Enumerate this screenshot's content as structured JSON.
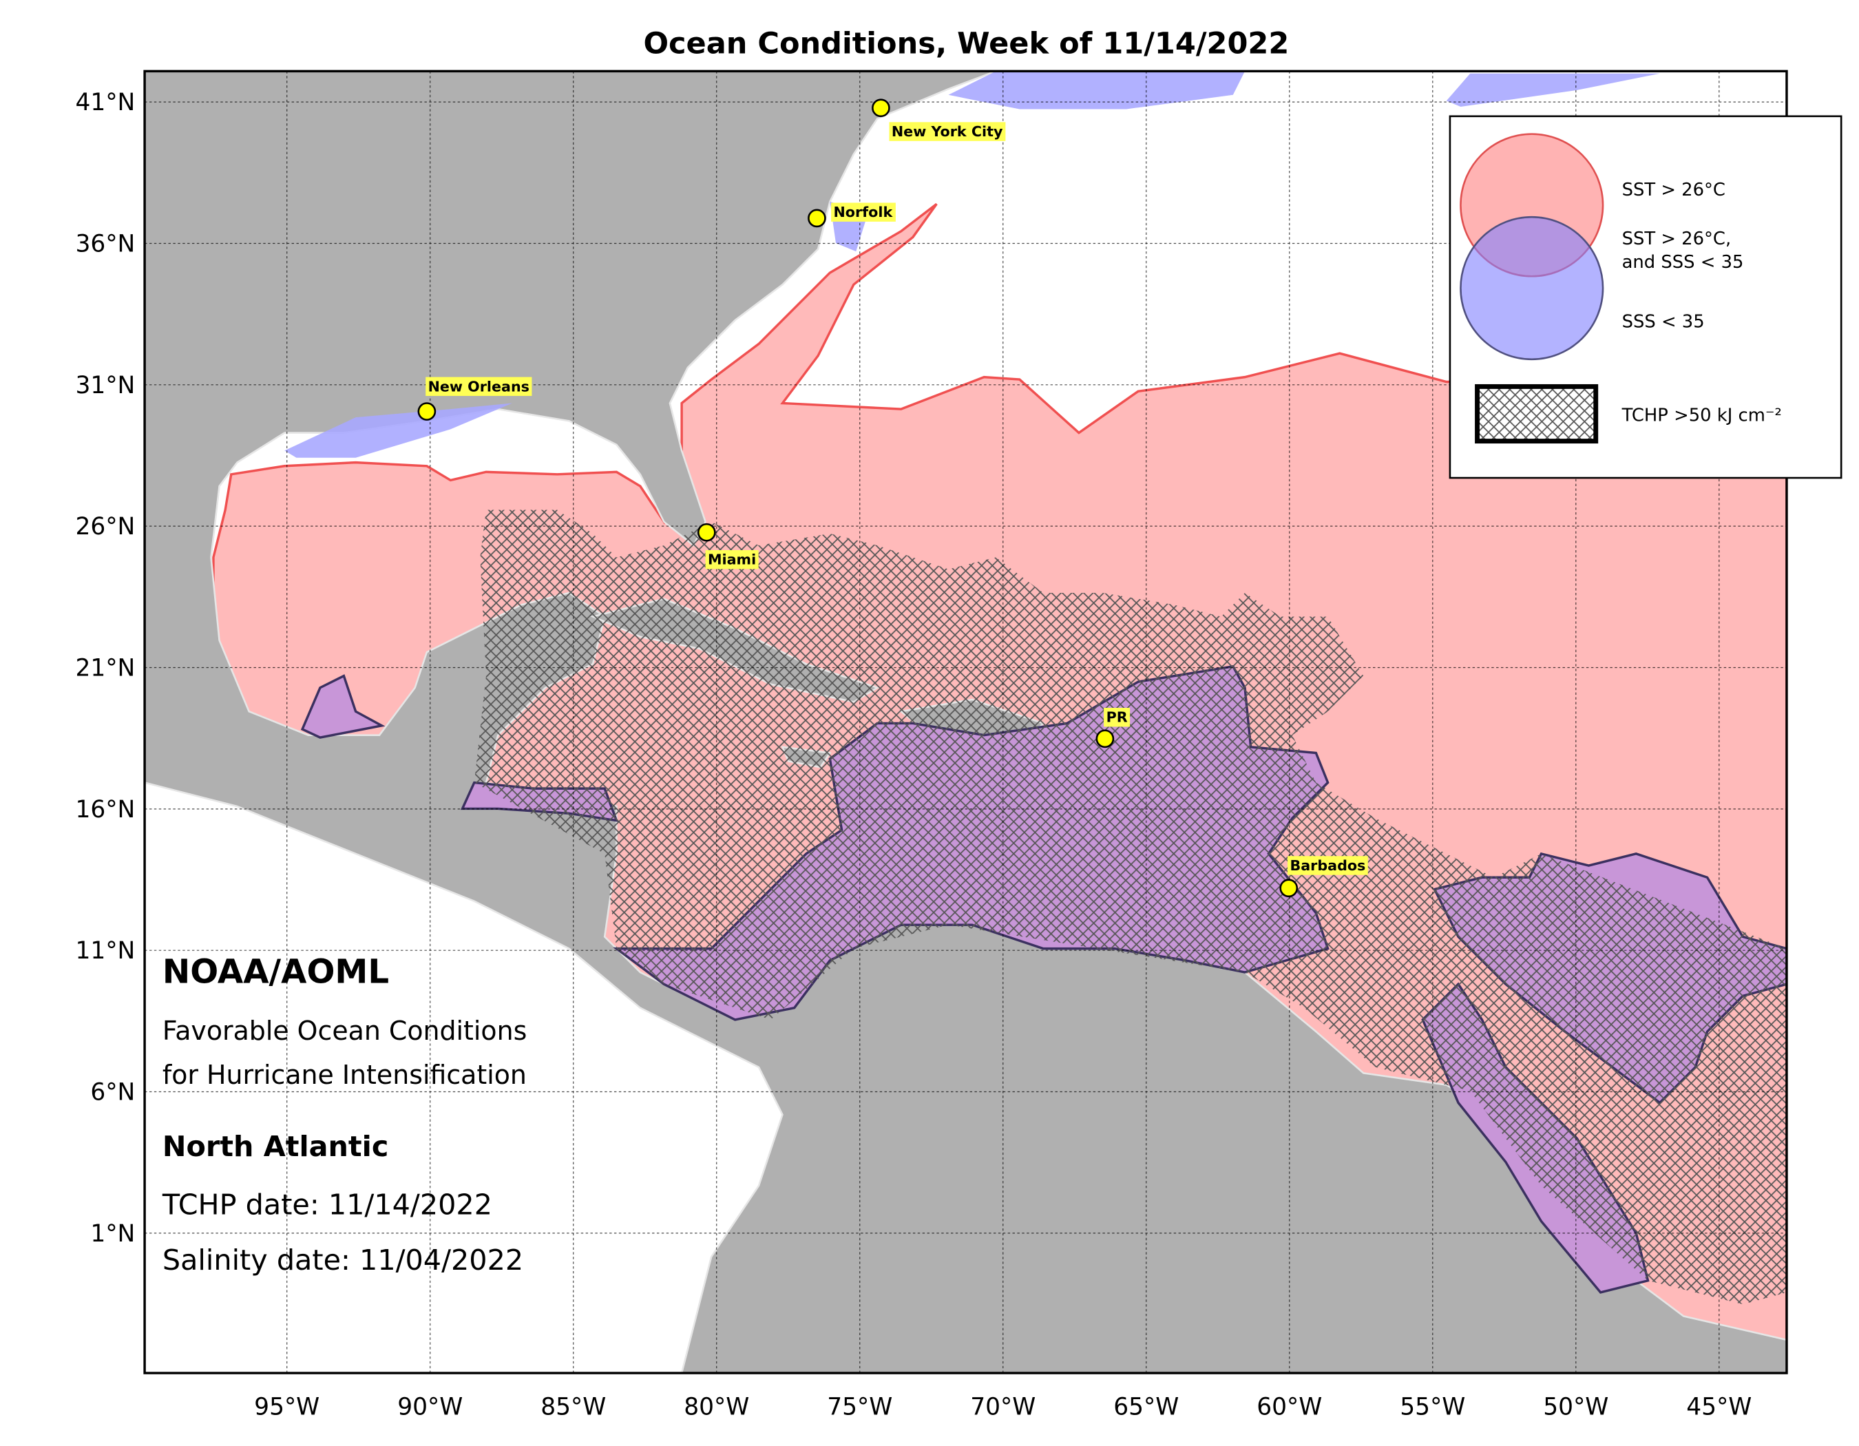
{
  "header": {
    "title": "Ocean Conditions, Week of 11/14/2022"
  },
  "map": {
    "lat_ticks": [
      {
        "value": 41,
        "label": "41°N"
      },
      {
        "value": 36,
        "label": "36°N"
      },
      {
        "value": 31,
        "label": "31°N"
      },
      {
        "value": 26,
        "label": "26°N"
      },
      {
        "value": 21,
        "label": "21°N"
      },
      {
        "value": 16,
        "label": "16°N"
      },
      {
        "value": 11,
        "label": "11°N"
      },
      {
        "value": 6,
        "label": "6°N"
      },
      {
        "value": 1,
        "label": "1°N"
      }
    ],
    "lon_ticks": [
      {
        "value": -95,
        "label": "95°W"
      },
      {
        "value": -90,
        "label": "90°W"
      },
      {
        "value": -85,
        "label": "85°W"
      },
      {
        "value": -80,
        "label": "80°W"
      },
      {
        "value": -75,
        "label": "75°W"
      },
      {
        "value": -70,
        "label": "70°W"
      },
      {
        "value": -65,
        "label": "65°W"
      },
      {
        "value": -60,
        "label": "60°W"
      },
      {
        "value": -55,
        "label": "55°W"
      },
      {
        "value": -50,
        "label": "50°W"
      },
      {
        "value": -45,
        "label": "45°W"
      }
    ],
    "cities": [
      "New York City",
      "Norfolk",
      "New Orleans",
      "Miami",
      "PR",
      "Barbados"
    ]
  },
  "legend": {
    "sst": "SST > 26°C",
    "both": [
      "SST > 26°C,",
      "and SSS < 35"
    ],
    "sss": "SSS < 35",
    "tchp": "TCHP >50 kJ cm⁻²"
  },
  "annotation": {
    "org": "NOAA/AOML",
    "description": [
      "Favorable Ocean Conditions",
      "for Hurricane Intensification"
    ],
    "region": "North Atlantic",
    "tchp_date": "TCHP date: 11/14/2022",
    "salinity_date": "Salinity date: 11/04/2022"
  }
}
